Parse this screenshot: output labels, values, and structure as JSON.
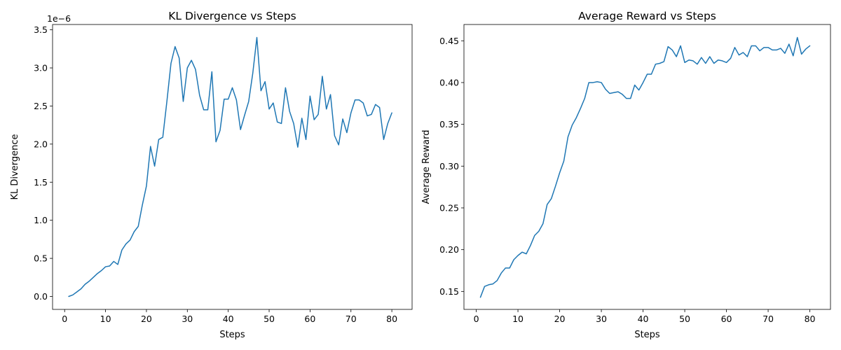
{
  "chart_data": [
    {
      "type": "line",
      "title": "KL Divergence vs Steps",
      "xlabel": "Steps",
      "ylabel": "KL Divergence",
      "y_offset_label": "1e−6",
      "xlim": [
        -2.95,
        84.95
      ],
      "ylim": [
        -0.17,
        3.57
      ],
      "x_ticks": [
        0,
        10,
        20,
        30,
        40,
        50,
        60,
        70,
        80
      ],
      "x_tick_labels": [
        "0",
        "10",
        "20",
        "30",
        "40",
        "50",
        "60",
        "70",
        "80"
      ],
      "y_ticks": [
        0.0,
        0.5,
        1.0,
        1.5,
        2.0,
        2.5,
        3.0,
        3.5
      ],
      "y_tick_labels": [
        "0.0",
        "0.5",
        "1.0",
        "1.5",
        "2.0",
        "2.5",
        "3.0",
        "3.5"
      ],
      "grid": false,
      "color": "#1f77b4",
      "x": [
        1,
        2,
        3,
        4,
        5,
        6,
        7,
        8,
        9,
        10,
        11,
        12,
        13,
        14,
        15,
        16,
        17,
        18,
        19,
        20,
        21,
        22,
        23,
        24,
        25,
        26,
        27,
        28,
        29,
        30,
        31,
        32,
        33,
        34,
        35,
        36,
        37,
        38,
        39,
        40,
        41,
        42,
        43,
        44,
        45,
        46,
        47,
        48,
        49,
        50,
        51,
        52,
        53,
        54,
        55,
        56,
        57,
        58,
        59,
        60,
        61,
        62,
        63,
        64,
        65,
        66,
        67,
        68,
        69,
        70,
        71,
        72,
        73,
        74,
        75,
        76,
        77,
        78,
        79,
        80
      ],
      "y": [
        0.0,
        0.02,
        0.06,
        0.1,
        0.16,
        0.2,
        0.25,
        0.3,
        0.34,
        0.39,
        0.4,
        0.46,
        0.42,
        0.61,
        0.69,
        0.74,
        0.85,
        0.92,
        1.2,
        1.45,
        1.97,
        1.71,
        2.06,
        2.09,
        2.56,
        3.06,
        3.28,
        3.13,
        2.56,
        3.0,
        3.1,
        2.98,
        2.64,
        2.45,
        2.45,
        2.95,
        2.03,
        2.18,
        2.59,
        2.59,
        2.74,
        2.58,
        2.19,
        2.38,
        2.56,
        2.93,
        3.4,
        2.7,
        2.82,
        2.46,
        2.54,
        2.29,
        2.27,
        2.74,
        2.43,
        2.27,
        1.96,
        2.34,
        2.06,
        2.63,
        2.32,
        2.39,
        2.89,
        2.46,
        2.65,
        2.11,
        1.99,
        2.33,
        2.15,
        2.41,
        2.58,
        2.58,
        2.54,
        2.37,
        2.39,
        2.52,
        2.48,
        2.06,
        2.27,
        2.41
      ]
    },
    {
      "type": "line",
      "title": "Average Reward vs Steps",
      "xlabel": "Steps",
      "ylabel": "Average Reward",
      "xlim": [
        -2.95,
        84.95
      ],
      "ylim": [
        0.1285,
        0.4695
      ],
      "x_ticks": [
        0,
        10,
        20,
        30,
        40,
        50,
        60,
        70,
        80
      ],
      "x_tick_labels": [
        "0",
        "10",
        "20",
        "30",
        "40",
        "50",
        "60",
        "70",
        "80"
      ],
      "y_ticks": [
        0.15,
        0.2,
        0.25,
        0.3,
        0.35,
        0.4,
        0.45
      ],
      "y_tick_labels": [
        "0.15",
        "0.20",
        "0.25",
        "0.30",
        "0.35",
        "0.40",
        "0.45"
      ],
      "grid": false,
      "color": "#1f77b4",
      "x": [
        1,
        2,
        3,
        4,
        5,
        6,
        7,
        8,
        9,
        10,
        11,
        12,
        13,
        14,
        15,
        16,
        17,
        18,
        19,
        20,
        21,
        22,
        23,
        24,
        25,
        26,
        27,
        28,
        29,
        30,
        31,
        32,
        33,
        34,
        35,
        36,
        37,
        38,
        39,
        40,
        41,
        42,
        43,
        44,
        45,
        46,
        47,
        48,
        49,
        50,
        51,
        52,
        53,
        54,
        55,
        56,
        57,
        58,
        59,
        60,
        61,
        62,
        63,
        64,
        65,
        66,
        67,
        68,
        69,
        70,
        71,
        72,
        73,
        74,
        75,
        76,
        77,
        78,
        79,
        80
      ],
      "y": [
        0.143,
        0.156,
        0.158,
        0.159,
        0.163,
        0.172,
        0.178,
        0.178,
        0.188,
        0.193,
        0.197,
        0.195,
        0.205,
        0.217,
        0.222,
        0.231,
        0.254,
        0.261,
        0.276,
        0.292,
        0.306,
        0.335,
        0.349,
        0.358,
        0.369,
        0.381,
        0.4,
        0.4,
        0.401,
        0.4,
        0.392,
        0.387,
        0.388,
        0.389,
        0.386,
        0.381,
        0.381,
        0.397,
        0.391,
        0.4,
        0.41,
        0.41,
        0.422,
        0.423,
        0.425,
        0.443,
        0.439,
        0.431,
        0.444,
        0.424,
        0.427,
        0.426,
        0.422,
        0.43,
        0.423,
        0.431,
        0.423,
        0.427,
        0.426,
        0.424,
        0.429,
        0.442,
        0.433,
        0.436,
        0.431,
        0.444,
        0.444,
        0.438,
        0.442,
        0.442,
        0.439,
        0.439,
        0.441,
        0.435,
        0.446,
        0.432,
        0.454,
        0.434,
        0.44,
        0.444
      ]
    }
  ]
}
